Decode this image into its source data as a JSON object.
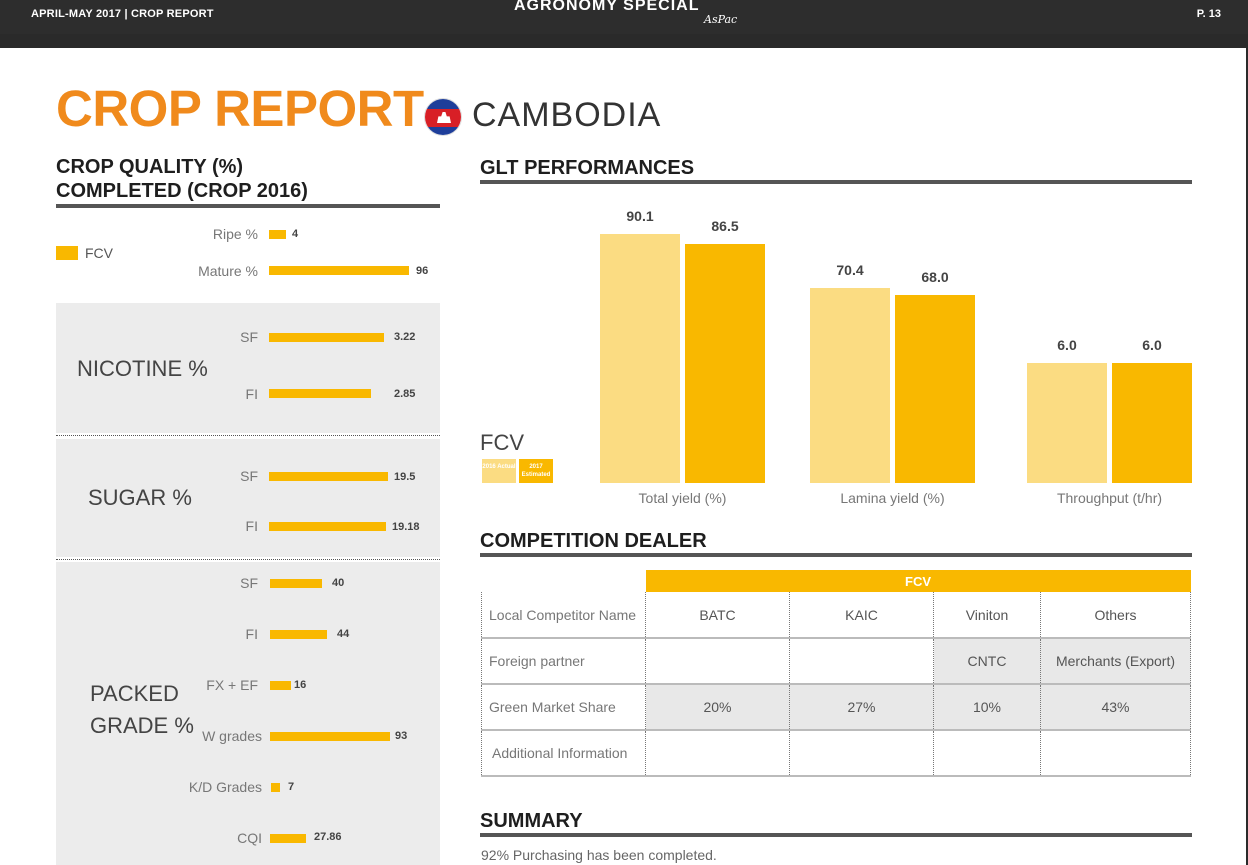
{
  "header": {
    "left": "APRIL-MAY 2017 | CROP REPORT",
    "brand": "AGRONOMY SPECIAL",
    "signature": "AsPac",
    "page": "P. 13"
  },
  "title": "CROP REPORT",
  "country": "CAMBODIA",
  "crop_quality": {
    "title_line1": "CROP QUALITY (%)",
    "title_line2": "COMPLETED (CROP 2016)",
    "legend": "FCV",
    "maturity": [
      {
        "label": "Ripe %",
        "value": "4"
      },
      {
        "label": "Mature %",
        "value": "96"
      }
    ],
    "nicotine": {
      "title": "NICOTINE %",
      "rows": [
        {
          "label": "SF",
          "value": "3.22"
        },
        {
          "label": "FI",
          "value": "2.85"
        }
      ]
    },
    "sugar": {
      "title": "SUGAR %",
      "rows": [
        {
          "label": "SF",
          "value": "19.5"
        },
        {
          "label": "FI",
          "value": "19.18"
        }
      ]
    },
    "packed": {
      "title_line1": "PACKED",
      "title_line2": "GRADE %",
      "rows": [
        {
          "label": "SF",
          "value": "40"
        },
        {
          "label": "FI",
          "value": "44"
        },
        {
          "label": "FX + EF",
          "value": "16"
        },
        {
          "label": "W grades",
          "value": "93"
        },
        {
          "label": "K/D Grades",
          "value": "7"
        },
        {
          "label": "CQI",
          "value": "27.86"
        }
      ]
    }
  },
  "glt": {
    "title": "GLT PERFORMANCES",
    "fcv_label": "FCV",
    "legend_actual": "2016 Actual",
    "legend_estimated": "2017 Estimated",
    "colors": {
      "actual": "#fbdc82",
      "estimated": "#f9b800"
    }
  },
  "chart_data": {
    "type": "bar",
    "categories": [
      "Total yield (%)",
      "Lamina yield (%)",
      "Throughput (t/hr)"
    ],
    "series": [
      {
        "name": "2016 Actual",
        "values": [
          90.1,
          70.4,
          6.0
        ]
      },
      {
        "name": "2017 Estimated",
        "values": [
          86.5,
          68.0,
          6.0
        ]
      }
    ],
    "value_labels": [
      [
        "90.1",
        "70.4",
        "6.0"
      ],
      [
        "86.5",
        "68.0",
        "6.0"
      ]
    ]
  },
  "competition": {
    "title": "COMPETITION DEALER",
    "header": "FCV",
    "rows": [
      {
        "label": "Local Competitor Name",
        "cells": [
          "BATC",
          "KAIC",
          "Viniton",
          "Others"
        ]
      },
      {
        "label": "Foreign partner",
        "cells": [
          "",
          "",
          "CNTC",
          "Merchants (Export)"
        ]
      },
      {
        "label": "Green Market Share",
        "cells": [
          "20%",
          "27%",
          "10%",
          "43%"
        ]
      },
      {
        "label": "Additional Information",
        "cells": [
          "",
          "",
          "",
          ""
        ]
      }
    ]
  },
  "summary": {
    "title": "SUMMARY",
    "text": "92% Purchasing has been completed."
  }
}
